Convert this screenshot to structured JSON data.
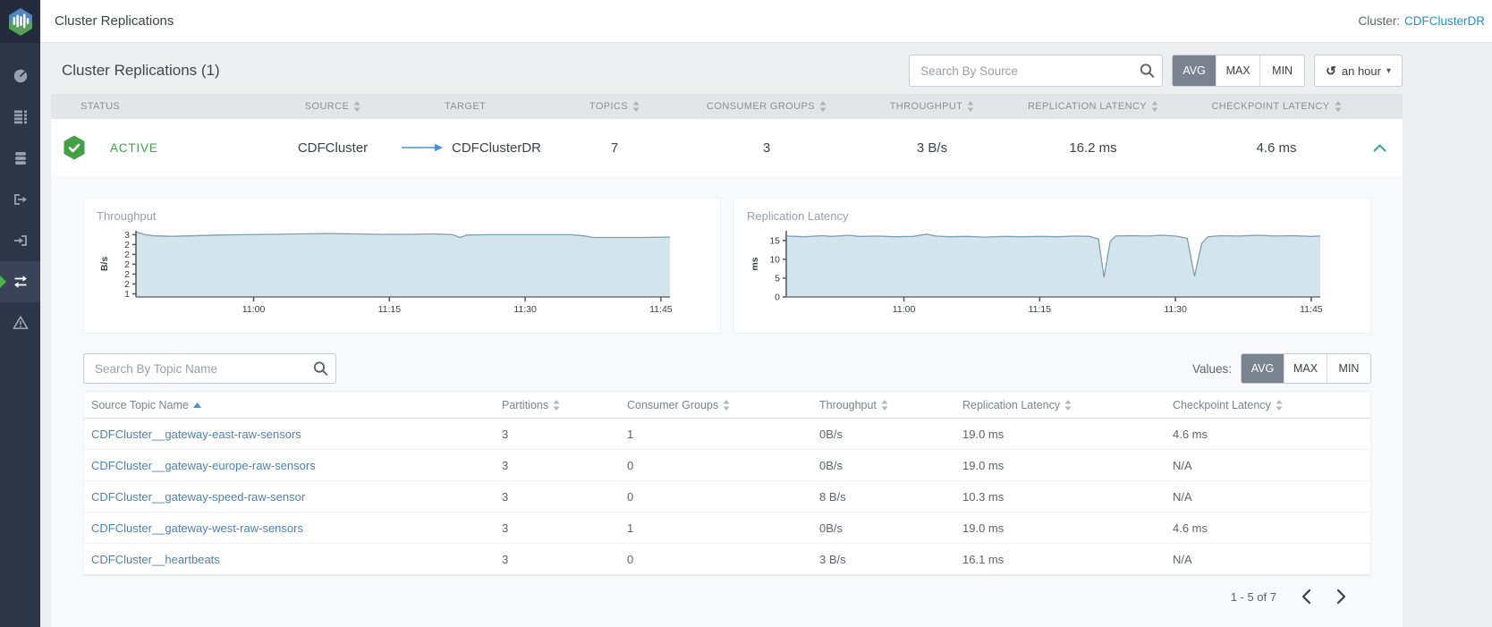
{
  "app": {
    "header_title": "Cluster Replications",
    "cluster_label": "Cluster:",
    "cluster_name": "CDFClusterDR"
  },
  "icons": {
    "history": "↺",
    "caret_down": "▾"
  },
  "sidebar": {
    "items": [
      {
        "id": "overview",
        "icon": "gauge-icon",
        "active": false
      },
      {
        "id": "brokers",
        "icon": "brokers-icon",
        "active": false
      },
      {
        "id": "topics",
        "icon": "topics-icon",
        "active": false
      },
      {
        "id": "producers",
        "icon": "produce-out-icon",
        "active": false
      },
      {
        "id": "consumer-groups",
        "icon": "consume-in-icon",
        "active": false
      },
      {
        "id": "cluster-replications",
        "icon": "replications-icon",
        "active": true
      },
      {
        "id": "alerts",
        "icon": "alert-icon",
        "active": false
      }
    ]
  },
  "toolbar": {
    "title": "Cluster Replications (1)",
    "search_placeholder": "Search By Source",
    "value_modes": [
      "AVG",
      "MAX",
      "MIN"
    ],
    "selected_mode": "AVG",
    "time_range": "an hour"
  },
  "replications_table": {
    "columns": [
      {
        "label": "STATUS",
        "sortable": false
      },
      {
        "label": "SOURCE",
        "sortable": true
      },
      {
        "label": "TARGET",
        "sortable": false
      },
      {
        "label": "TOPICS",
        "sortable": true
      },
      {
        "label": "CONSUMER GROUPS",
        "sortable": true
      },
      {
        "label": "THROUGHPUT",
        "sortable": true
      },
      {
        "label": "REPLICATION LATENCY",
        "sortable": true
      },
      {
        "label": "CHECKPOINT LATENCY",
        "sortable": true
      }
    ],
    "row": {
      "status": "ACTIVE",
      "source": "CDFCluster",
      "target": "CDFClusterDR",
      "topics": "7",
      "consumer_groups": "3",
      "throughput": "3 B/s",
      "replication_latency": "16.2 ms",
      "checkpoint_latency": "4.6 ms",
      "expanded": true
    }
  },
  "chart_data": [
    {
      "type": "area",
      "title": "Throughput",
      "ylabel": "B/s",
      "x_ticks": [
        "11:00",
        "11:15",
        "11:30",
        "11:45"
      ],
      "x_tick_positions": [
        13,
        28,
        43,
        58
      ],
      "x_domain": [
        0,
        59
      ],
      "x_note": "minutes after 10:47",
      "y_domain": [
        1.42,
        3.1
      ],
      "y_tick_labels": [
        "3",
        "2",
        "2",
        "2",
        "2",
        "2",
        "1"
      ],
      "y_tick_values": [
        3.0,
        2.75,
        2.5,
        2.25,
        2.0,
        1.75,
        1.5
      ],
      "fill_color": "#d3e4ec",
      "line_color": "#7d9fb0",
      "grid": false,
      "legend": false,
      "points": [
        [
          0,
          3.07
        ],
        [
          1,
          3.0
        ],
        [
          2,
          2.97
        ],
        [
          4,
          2.96
        ],
        [
          6,
          2.97
        ],
        [
          9,
          2.99
        ],
        [
          12,
          3.0
        ],
        [
          15,
          3.01
        ],
        [
          18,
          3.02
        ],
        [
          21,
          3.03
        ],
        [
          24,
          3.02
        ],
        [
          27,
          3.01
        ],
        [
          30,
          3.01
        ],
        [
          33,
          3.02
        ],
        [
          35,
          3.0
        ],
        [
          35.8,
          2.93
        ],
        [
          36.6,
          2.99
        ],
        [
          39,
          3.0
        ],
        [
          42,
          3.0
        ],
        [
          45,
          3.0
        ],
        [
          48,
          3.0
        ],
        [
          49.5,
          2.97
        ],
        [
          50.5,
          2.93
        ],
        [
          53,
          2.93
        ],
        [
          56,
          2.93
        ],
        [
          59,
          2.94
        ]
      ]
    },
    {
      "type": "area",
      "title": "Replication Latency",
      "ylabel": "ms",
      "x_ticks": [
        "11:00",
        "11:15",
        "11:30",
        "11:45"
      ],
      "x_tick_positions": [
        13,
        28,
        43,
        58
      ],
      "x_domain": [
        0,
        59
      ],
      "x_note": "minutes after 10:47",
      "y_domain": [
        0,
        17.6
      ],
      "y_tick_labels": [
        "15",
        "10",
        "5",
        "0"
      ],
      "y_tick_values": [
        15,
        10,
        5,
        0
      ],
      "fill_color": "#d3e4ec",
      "line_color": "#7d9fb0",
      "grid": false,
      "legend": false,
      "points": [
        [
          0,
          16.2
        ],
        [
          2,
          16.0
        ],
        [
          4,
          16.3
        ],
        [
          5,
          16.1
        ],
        [
          7,
          16.4
        ],
        [
          8,
          16.1
        ],
        [
          10,
          16.2
        ],
        [
          12,
          16.0
        ],
        [
          14,
          16.1
        ],
        [
          15.5,
          16.7
        ],
        [
          16.5,
          16.2
        ],
        [
          18,
          16.0
        ],
        [
          20,
          16.1
        ],
        [
          22,
          15.9
        ],
        [
          24,
          16.1
        ],
        [
          26,
          16.0
        ],
        [
          28,
          16.1
        ],
        [
          30,
          16.0
        ],
        [
          32,
          16.2
        ],
        [
          33.5,
          16.1
        ],
        [
          34.5,
          15.4
        ],
        [
          35.1,
          5.2
        ],
        [
          35.8,
          14.8
        ],
        [
          36.4,
          16.2
        ],
        [
          38,
          16.3
        ],
        [
          40,
          16.2
        ],
        [
          41.5,
          16.4
        ],
        [
          43,
          16.2
        ],
        [
          44.3,
          15.6
        ],
        [
          45.1,
          5.5
        ],
        [
          45.9,
          14.2
        ],
        [
          46.6,
          16.0
        ],
        [
          48,
          16.3
        ],
        [
          50,
          16.2
        ],
        [
          52,
          16.4
        ],
        [
          54,
          16.2
        ],
        [
          56,
          16.3
        ],
        [
          58,
          16.1
        ],
        [
          59,
          16.2
        ]
      ]
    }
  ],
  "topics_section": {
    "search_placeholder": "Search By Topic Name",
    "values_label": "Values:",
    "value_modes": [
      "AVG",
      "MAX",
      "MIN"
    ],
    "selected_mode": "AVG",
    "columns": [
      {
        "label": "Source Topic Name",
        "sort": "asc"
      },
      {
        "label": "Partitions",
        "sortable": true
      },
      {
        "label": "Consumer Groups",
        "sortable": true
      },
      {
        "label": "Throughput",
        "sortable": true
      },
      {
        "label": "Replication Latency",
        "sortable": true
      },
      {
        "label": "Checkpoint Latency",
        "sortable": true
      }
    ],
    "rows": [
      {
        "name": "CDFCluster__gateway-east-raw-sensors",
        "partitions": "3",
        "consumer_groups": "1",
        "throughput": "0B/s",
        "replication_latency": "19.0 ms",
        "checkpoint_latency": "4.6 ms"
      },
      {
        "name": "CDFCluster__gateway-europe-raw-sensors",
        "partitions": "3",
        "consumer_groups": "0",
        "throughput": "0B/s",
        "replication_latency": "19.0 ms",
        "checkpoint_latency": "N/A"
      },
      {
        "name": "CDFCluster__gateway-speed-raw-sensor",
        "partitions": "3",
        "consumer_groups": "0",
        "throughput": "8 B/s",
        "replication_latency": "10.3 ms",
        "checkpoint_latency": "N/A"
      },
      {
        "name": "CDFCluster__gateway-west-raw-sensors",
        "partitions": "3",
        "consumer_groups": "1",
        "throughput": "0B/s",
        "replication_latency": "19.0 ms",
        "checkpoint_latency": "4.6 ms"
      },
      {
        "name": "CDFCluster__heartbeats",
        "partitions": "3",
        "consumer_groups": "0",
        "throughput": "3 B/s",
        "replication_latency": "16.1 ms",
        "checkpoint_latency": "N/A"
      }
    ]
  },
  "pagination": {
    "label": "1 - 5 of 7"
  }
}
